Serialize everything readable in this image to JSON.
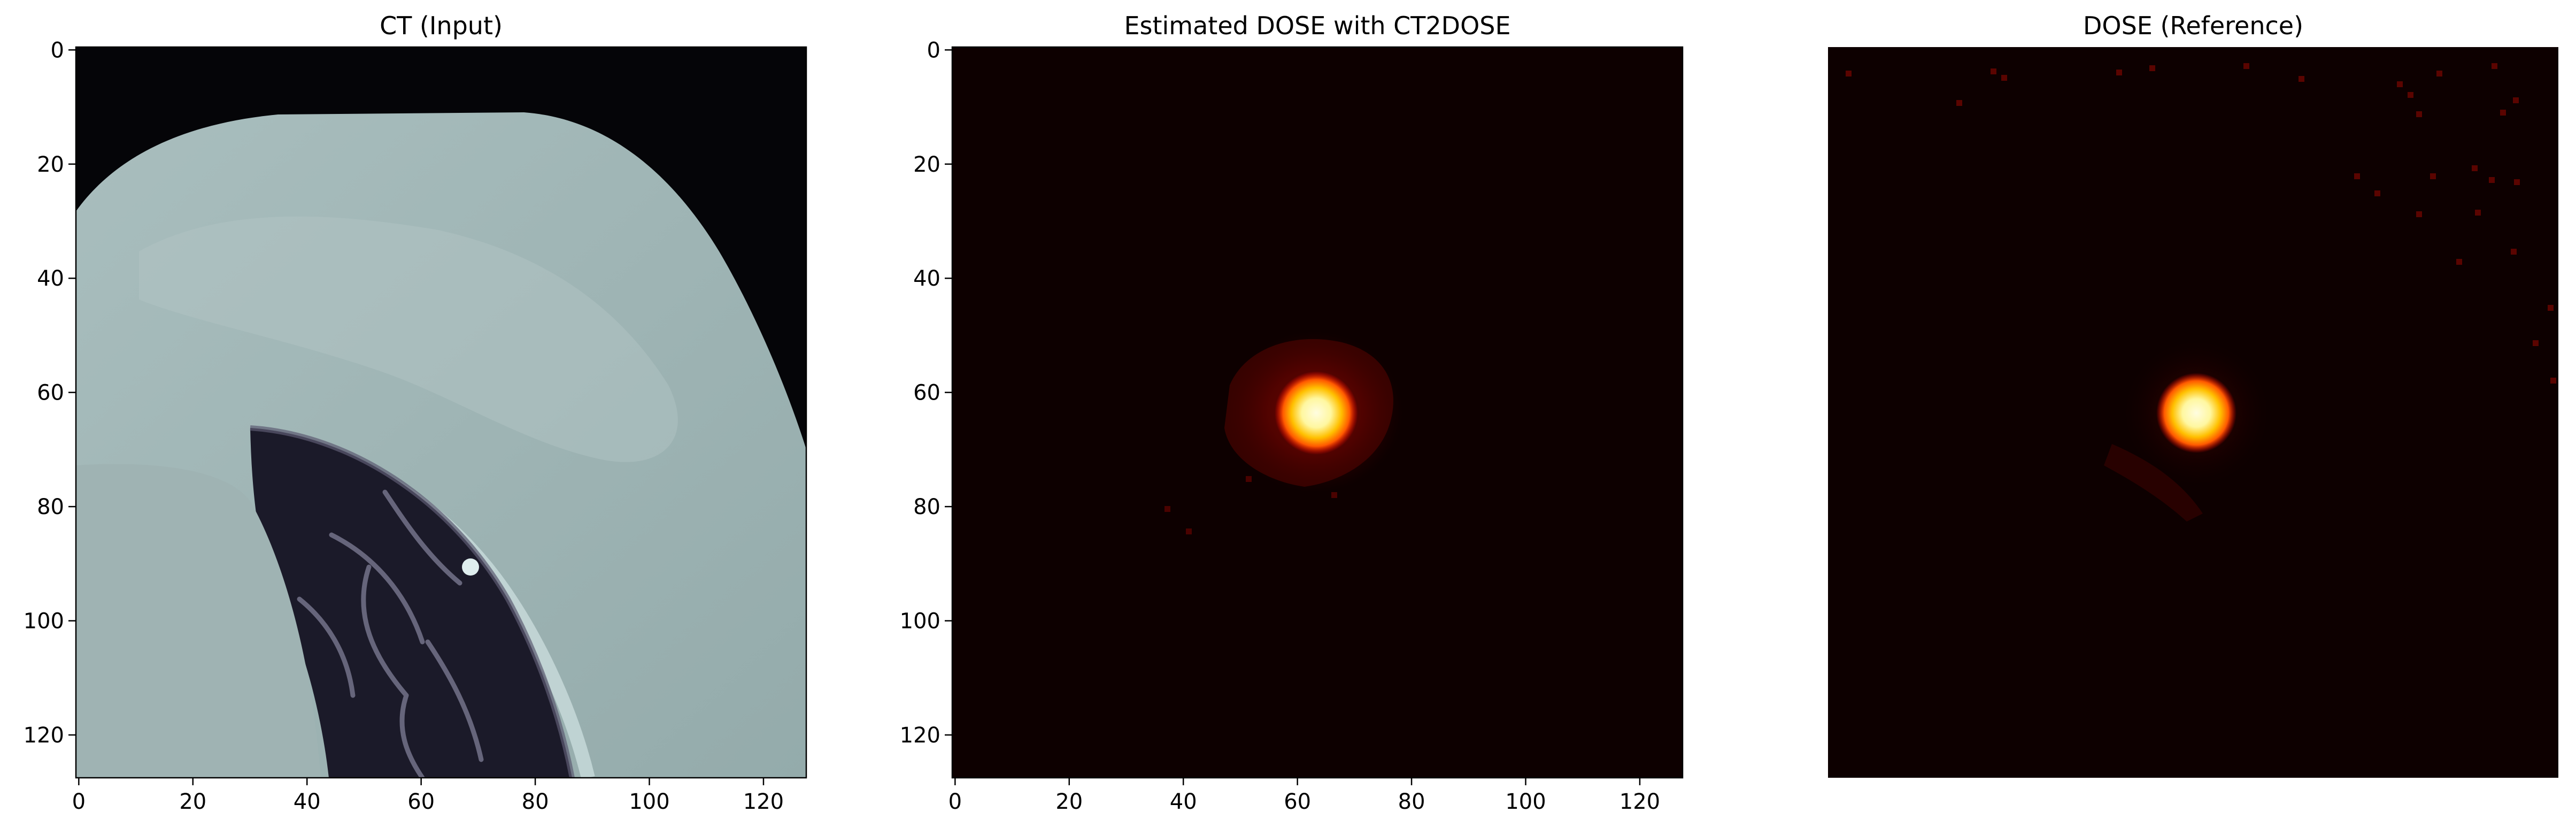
{
  "figure": {
    "panels": [
      {
        "id": "ct",
        "title": "CT (Input)",
        "x_ticks": [
          "0",
          "20",
          "40",
          "60",
          "80",
          "100",
          "120"
        ],
        "y_ticks": [
          "0",
          "20",
          "40",
          "60",
          "80",
          "100",
          "120"
        ],
        "show_axes": true,
        "colormap": "bone"
      },
      {
        "id": "estimated",
        "title": "Estimated DOSE with CT2DOSE",
        "x_ticks": [
          "0",
          "20",
          "40",
          "60",
          "80",
          "100",
          "120"
        ],
        "y_ticks": [
          "0",
          "20",
          "40",
          "60",
          "80",
          "100",
          "120"
        ],
        "show_axes": true,
        "colormap": "hot",
        "hotspot_center": [
          63,
          63
        ]
      },
      {
        "id": "reference",
        "title": "DOSE (Reference)",
        "x_ticks": [],
        "y_ticks": [],
        "show_axes": false,
        "colormap": "hot",
        "hotspot_center": [
          63,
          63
        ]
      }
    ],
    "colors": {
      "ct_background": "#050508",
      "ct_tissue": "#a3b8b8",
      "ct_lung": "#1a1a28",
      "dose_background": "#0d0000",
      "dose_core": "#fffcc8",
      "dose_mid": "#ff8c00",
      "dose_edge": "#c81000"
    }
  }
}
